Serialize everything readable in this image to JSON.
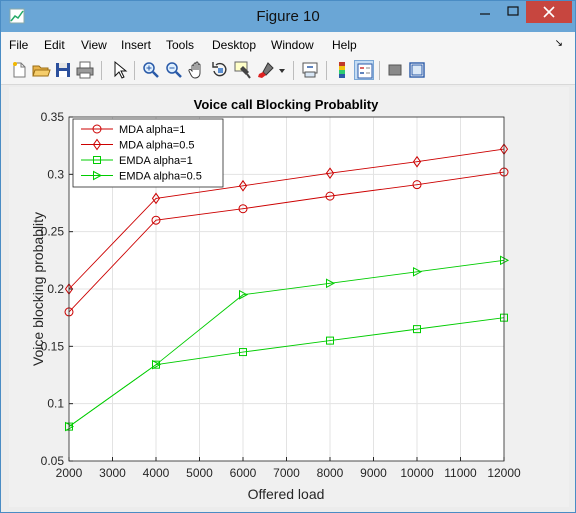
{
  "window": {
    "title": "Figure 10"
  },
  "menu": {
    "items": [
      "File",
      "Edit",
      "View",
      "Insert",
      "Tools",
      "Desktop",
      "Window",
      "Help"
    ]
  },
  "toolbar": {
    "icons": [
      "new-figure-icon",
      "open-file-icon",
      "save-icon",
      "print-icon",
      "edit-plot-icon",
      "zoom-in-icon",
      "zoom-out-icon",
      "pan-icon",
      "rotate-3d-icon",
      "data-cursor-icon",
      "brush-icon",
      "link-plot-icon",
      "colorbar-icon",
      "legend-icon",
      "hide-plot-tools-icon",
      "show-plot-tools-icon"
    ]
  },
  "colors": {
    "mda": "#cc0000",
    "emda": "#00cc00"
  },
  "chart_data": {
    "type": "line",
    "title": "Voice call Blocking Probablity",
    "xlabel": "Offered load",
    "ylabel": "Voice blocking probablity",
    "x": [
      2000,
      4000,
      6000,
      8000,
      10000,
      12000
    ],
    "xlim": [
      2000,
      12000
    ],
    "ylim": [
      0.05,
      0.35
    ],
    "xticks": [
      "2000",
      "3000",
      "4000",
      "5000",
      "6000",
      "7000",
      "8000",
      "9000",
      "10000",
      "11000",
      "12000"
    ],
    "yticks": [
      "0.05",
      "0.1",
      "0.15",
      "0.2",
      "0.25",
      "0.3",
      "0.35"
    ],
    "grid": true,
    "legend_position": "top-left",
    "series": [
      {
        "name": "MDA alpha=1",
        "marker": "circle",
        "color": "#cc0000",
        "values": [
          0.18,
          0.26,
          0.27,
          0.281,
          0.291,
          0.302
        ]
      },
      {
        "name": "MDA alpha=0.5",
        "marker": "diamond",
        "color": "#cc0000",
        "values": [
          0.2,
          0.279,
          0.29,
          0.301,
          0.311,
          0.322
        ]
      },
      {
        "name": "EMDA alpha=1",
        "marker": "square",
        "color": "#00cc00",
        "values": [
          0.08,
          0.134,
          0.145,
          0.155,
          0.165,
          0.175
        ]
      },
      {
        "name": "EMDA alpha=0.5",
        "marker": "triangle-right",
        "color": "#00cc00",
        "values": [
          0.08,
          0.134,
          0.195,
          0.205,
          0.215,
          0.225
        ]
      }
    ]
  }
}
